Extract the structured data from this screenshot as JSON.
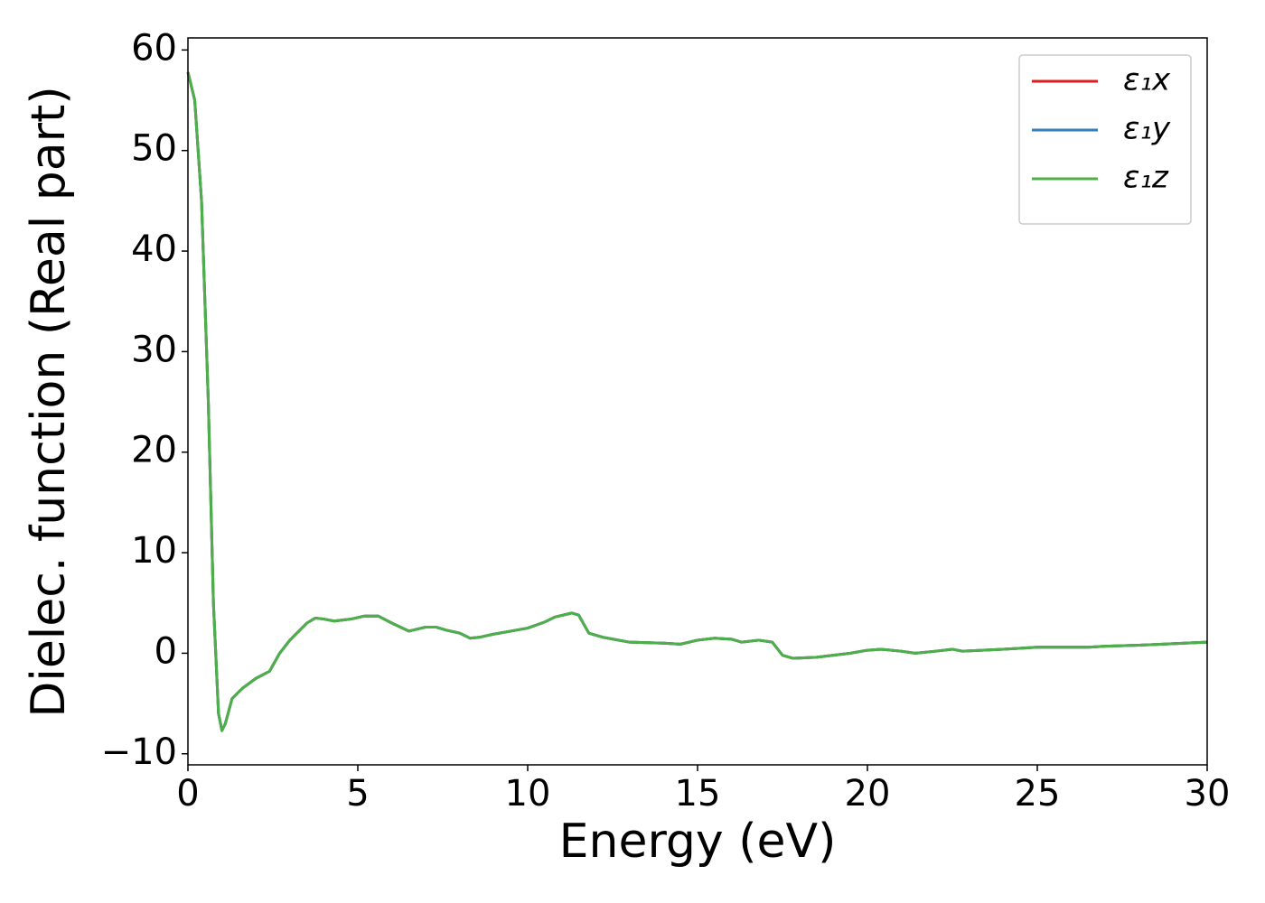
{
  "chart_data": {
    "type": "line",
    "xlabel": "Energy (eV)",
    "ylabel": "Dielec. function (Real part)",
    "x": [
      0,
      0.2,
      0.4,
      0.6,
      0.75,
      0.9,
      1.0,
      1.1,
      1.3,
      1.6,
      2.0,
      2.4,
      2.7,
      3.0,
      3.5,
      3.75,
      4.0,
      4.3,
      4.8,
      5.2,
      5.6,
      6.0,
      6.5,
      7.0,
      7.3,
      7.6,
      8.0,
      8.3,
      8.6,
      9.0,
      9.5,
      10.0,
      10.5,
      10.8,
      11.3,
      11.5,
      11.8,
      12.2,
      13.0,
      14.0,
      14.5,
      15.0,
      15.5,
      16.0,
      16.3,
      16.8,
      17.2,
      17.5,
      17.8,
      18.5,
      19.5,
      20.0,
      20.4,
      21.0,
      21.4,
      22.0,
      22.5,
      22.8,
      24.0,
      25.0,
      26.5,
      27.0,
      28.0,
      30.0
    ],
    "series": [
      {
        "name": "ε₁x",
        "color": "#e41a1c",
        "values": [
          57.8,
          55,
          45,
          25,
          5,
          -6,
          -7.7,
          -7,
          -4.5,
          -3.5,
          -2.5,
          -1.8,
          0,
          1.3,
          3.0,
          3.5,
          3.4,
          3.2,
          3.4,
          3.7,
          3.7,
          3.0,
          2.2,
          2.6,
          2.6,
          2.3,
          2.0,
          1.5,
          1.6,
          1.9,
          2.2,
          2.5,
          3.1,
          3.6,
          4.0,
          3.8,
          2.0,
          1.6,
          1.1,
          1.0,
          0.9,
          1.3,
          1.5,
          1.4,
          1.1,
          1.3,
          1.1,
          -0.2,
          -0.5,
          -0.4,
          0,
          0.3,
          0.4,
          0.2,
          0,
          0.2,
          0.4,
          0.2,
          0.4,
          0.6,
          0.6,
          0.7,
          0.8,
          1.1
        ]
      },
      {
        "name": "ε₁y",
        "color": "#377eb8",
        "values": [
          57.8,
          55,
          45,
          25,
          5,
          -6,
          -7.7,
          -7,
          -4.5,
          -3.5,
          -2.5,
          -1.8,
          0,
          1.3,
          3.0,
          3.5,
          3.4,
          3.2,
          3.4,
          3.7,
          3.7,
          3.0,
          2.2,
          2.6,
          2.6,
          2.3,
          2.0,
          1.5,
          1.6,
          1.9,
          2.2,
          2.5,
          3.1,
          3.6,
          4.0,
          3.8,
          2.0,
          1.6,
          1.1,
          1.0,
          0.9,
          1.3,
          1.5,
          1.4,
          1.1,
          1.3,
          1.1,
          -0.2,
          -0.5,
          -0.4,
          0,
          0.3,
          0.4,
          0.2,
          0,
          0.2,
          0.4,
          0.2,
          0.4,
          0.6,
          0.6,
          0.7,
          0.8,
          1.1
        ]
      },
      {
        "name": "ε₁z",
        "color": "#4daf4a",
        "values": [
          57.8,
          55,
          45,
          25,
          5,
          -6,
          -7.7,
          -7,
          -4.5,
          -3.5,
          -2.5,
          -1.8,
          0,
          1.3,
          3.0,
          3.5,
          3.4,
          3.2,
          3.4,
          3.7,
          3.7,
          3.0,
          2.2,
          2.6,
          2.6,
          2.3,
          2.0,
          1.5,
          1.6,
          1.9,
          2.2,
          2.5,
          3.1,
          3.6,
          4.0,
          3.8,
          2.0,
          1.6,
          1.1,
          1.0,
          0.9,
          1.3,
          1.5,
          1.4,
          1.1,
          1.3,
          1.1,
          -0.2,
          -0.5,
          -0.4,
          0,
          0.3,
          0.4,
          0.2,
          0,
          0.2,
          0.4,
          0.2,
          0.4,
          0.6,
          0.6,
          0.7,
          0.8,
          1.1
        ]
      }
    ],
    "xlim": [
      0,
      30
    ],
    "xticks": [
      0,
      5,
      10,
      15,
      20,
      25,
      30
    ],
    "ylim": [
      -11.1,
      61.2
    ],
    "yticks": [
      {
        "value": -10,
        "label": "−10"
      },
      0,
      10,
      20,
      30,
      40,
      50,
      60
    ],
    "grid": false,
    "legend": "upper right"
  }
}
